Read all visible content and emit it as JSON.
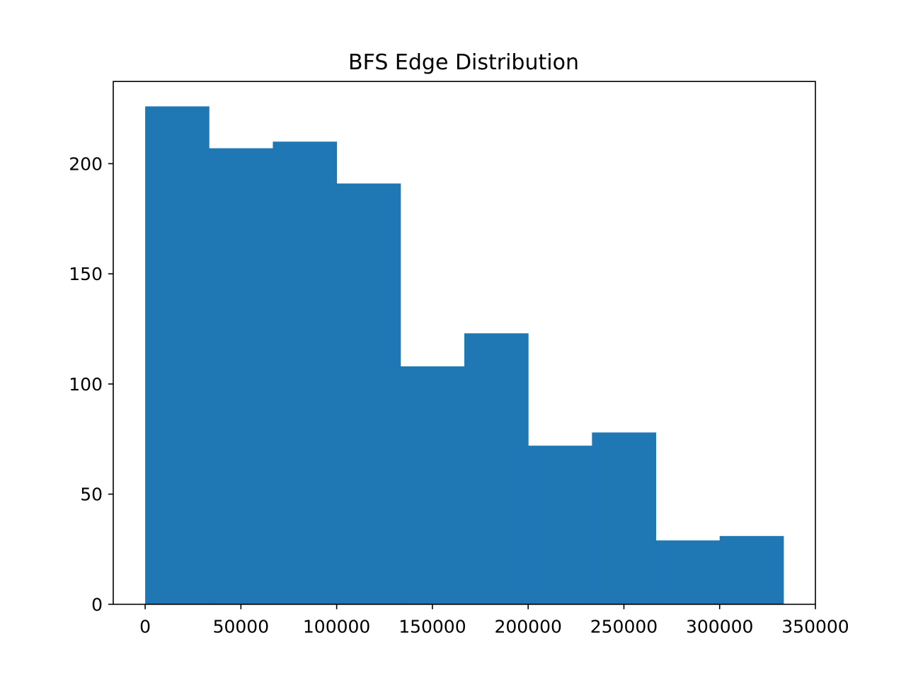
{
  "chart_data": {
    "type": "bar",
    "title": "BFS Edge Distribution",
    "xlabel": "",
    "ylabel": "",
    "bins": [
      {
        "start": 0,
        "end": 33333,
        "count": 226
      },
      {
        "start": 33333,
        "end": 66667,
        "count": 207
      },
      {
        "start": 66667,
        "end": 100000,
        "count": 210
      },
      {
        "start": 100000,
        "end": 133333,
        "count": 191
      },
      {
        "start": 133333,
        "end": 166667,
        "count": 108
      },
      {
        "start": 166667,
        "end": 200000,
        "count": 123
      },
      {
        "start": 200000,
        "end": 233333,
        "count": 72
      },
      {
        "start": 233333,
        "end": 266667,
        "count": 78
      },
      {
        "start": 266667,
        "end": 300000,
        "count": 29
      },
      {
        "start": 300000,
        "end": 333333,
        "count": 31
      }
    ],
    "xlim": [
      -16667,
      350000
    ],
    "ylim": [
      0,
      237.3
    ],
    "xticks": [
      0,
      50000,
      100000,
      150000,
      200000,
      250000,
      300000,
      350000
    ],
    "xtick_labels": [
      "0",
      "50000",
      "100000",
      "150000",
      "200000",
      "250000",
      "300000",
      "350000"
    ],
    "yticks": [
      0,
      50,
      100,
      150,
      200
    ],
    "ytick_labels": [
      "0",
      "50",
      "100",
      "150",
      "200"
    ],
    "grid": false,
    "legend": "none",
    "colors": {
      "bar": "#1f77b4",
      "axes": "#000000",
      "background": "#ffffff"
    }
  }
}
